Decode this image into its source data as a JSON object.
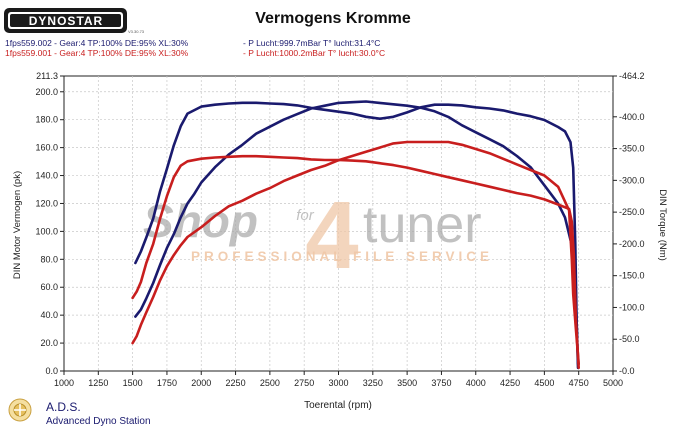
{
  "brand": {
    "logo_text": "DYNOSTAR",
    "logo_suffix": "V3.30.73"
  },
  "title": "Vermogens Kromme",
  "runs": [
    {
      "label": "1fps559.002 - Gear:4 TP:100% DE:95% XL:30%",
      "conditions": "- P Lucht:999.7mBar T° lucht:31.4°C",
      "color": "#1a1a6e"
    },
    {
      "label": "1fps559.001 - Gear:4 TP:100% DE:95% XL:30%",
      "conditions": "- P Lucht:1000.2mBar T° lucht:30.0°C",
      "color": "#c81e1e"
    }
  ],
  "watermark": {
    "shop": "Shop",
    "for": "for",
    "four": "4",
    "tuner": "tuner",
    "tagline": "PROFESSIONAL FILE SERVICE"
  },
  "footer": {
    "company": "A.D.S.",
    "product": "Advanced Dyno Station"
  },
  "chart_data": {
    "type": "line",
    "xlabel": "Toerental (rpm)",
    "ylabel_left": "DIN Motor Vermogen (pk)",
    "ylabel_right": "DIN Torque (Nm)",
    "xlim": [
      1000,
      5000
    ],
    "xticks": [
      "1000",
      "1250",
      "1500",
      "1750",
      "2000",
      "2250",
      "2500",
      "2750",
      "3000",
      "3250",
      "3500",
      "3750",
      "4000",
      "4250",
      "4500",
      "4750",
      "5000"
    ],
    "ylim_left": [
      0,
      211.3
    ],
    "yticks_left": [
      "211.3",
      "200.0",
      "180.0",
      "160.0",
      "140.0",
      "120.0",
      "100.0",
      "80.0",
      "60.0",
      "40.0",
      "20.0",
      "0.0"
    ],
    "ylim_right": [
      0,
      464.2
    ],
    "yticks_right": [
      "464.2",
      "400.0",
      "350.0",
      "300.0",
      "250.0",
      "200.0",
      "150.0",
      "100.0",
      "50.0",
      "0.0"
    ],
    "grid": true,
    "series": [
      {
        "axis": "left",
        "color": "#1a1a6e",
        "x": [
          1520,
          1560,
          1600,
          1650,
          1700,
          1750,
          1800,
          1850,
          1900,
          1950,
          2000,
          2100,
          2200,
          2300,
          2400,
          2500,
          2600,
          2700,
          2800,
          2900,
          3000,
          3100,
          3200,
          3300,
          3400,
          3500,
          3600,
          3700,
          3800,
          3900,
          4000,
          4100,
          4200,
          4300,
          4400,
          4500,
          4600,
          4650,
          4700,
          4720,
          4730,
          4740,
          4745
        ],
        "y": [
          39,
          44,
          52,
          63,
          76,
          88,
          98,
          110,
          120,
          127,
          135,
          146,
          155,
          162,
          170,
          175,
          180,
          184,
          188,
          190,
          192,
          192.5,
          193,
          192,
          191,
          190,
          188.5,
          186,
          182,
          176,
          171,
          166,
          161,
          154,
          146,
          133,
          120,
          110,
          90,
          70,
          50,
          20,
          5
        ]
      },
      {
        "axis": "right",
        "color": "#1a1a6e",
        "x": [
          1520,
          1560,
          1600,
          1650,
          1700,
          1750,
          1800,
          1850,
          1900,
          2000,
          2100,
          2200,
          2300,
          2400,
          2500,
          2600,
          2700,
          2800,
          2900,
          3000,
          3100,
          3200,
          3300,
          3400,
          3500,
          3600,
          3700,
          3800,
          3900,
          4000,
          4100,
          4200,
          4300,
          4400,
          4500,
          4600,
          4650,
          4690,
          4710,
          4725,
          4735,
          4745
        ],
        "y": [
          170,
          188,
          210,
          240,
          283,
          318,
          355,
          385,
          405,
          416,
          419,
          421,
          422,
          422,
          421,
          420,
          418,
          414,
          411,
          408,
          405,
          400,
          397,
          400,
          407,
          415,
          419,
          419,
          418,
          415,
          413,
          410,
          405,
          401,
          395,
          384,
          377,
          360,
          320,
          200,
          80,
          5
        ]
      },
      {
        "axis": "left",
        "color": "#c81e1e",
        "x": [
          1500,
          1530,
          1560,
          1600,
          1650,
          1700,
          1750,
          1800,
          1850,
          1900,
          2000,
          2100,
          2200,
          2300,
          2400,
          2500,
          2600,
          2700,
          2800,
          2900,
          3000,
          3100,
          3200,
          3300,
          3400,
          3500,
          3600,
          3700,
          3800,
          3900,
          4000,
          4100,
          4200,
          4300,
          4400,
          4500,
          4600,
          4680,
          4700,
          4710,
          4730,
          4750
        ],
        "y": [
          20,
          25,
          33,
          42,
          53,
          65,
          75,
          83,
          90,
          96,
          103,
          111,
          118,
          122,
          127,
          131,
          136,
          140,
          144,
          147,
          151,
          154,
          157,
          160,
          163,
          164,
          164,
          164,
          164,
          162,
          159,
          156,
          152,
          148,
          144,
          140,
          132,
          115,
          80,
          55,
          30,
          5
        ]
      },
      {
        "axis": "right",
        "color": "#c81e1e",
        "x": [
          1500,
          1530,
          1560,
          1600,
          1650,
          1700,
          1750,
          1800,
          1850,
          1900,
          2000,
          2100,
          2200,
          2300,
          2400,
          2500,
          2600,
          2700,
          2800,
          2900,
          3000,
          3100,
          3200,
          3300,
          3400,
          3500,
          3600,
          3700,
          3800,
          3900,
          4000,
          4100,
          4200,
          4300,
          4400,
          4500,
          4600,
          4680,
          4700,
          4715,
          4730,
          4750
        ],
        "y": [
          115,
          125,
          140,
          170,
          200,
          240,
          275,
          305,
          323,
          330,
          334,
          336,
          337,
          338,
          338,
          337,
          336,
          335,
          333,
          332,
          332,
          331,
          330,
          327,
          324,
          320,
          315,
          310,
          305,
          300,
          295,
          290,
          285,
          280,
          276,
          270,
          262,
          255,
          235,
          180,
          80,
          5
        ]
      }
    ]
  }
}
